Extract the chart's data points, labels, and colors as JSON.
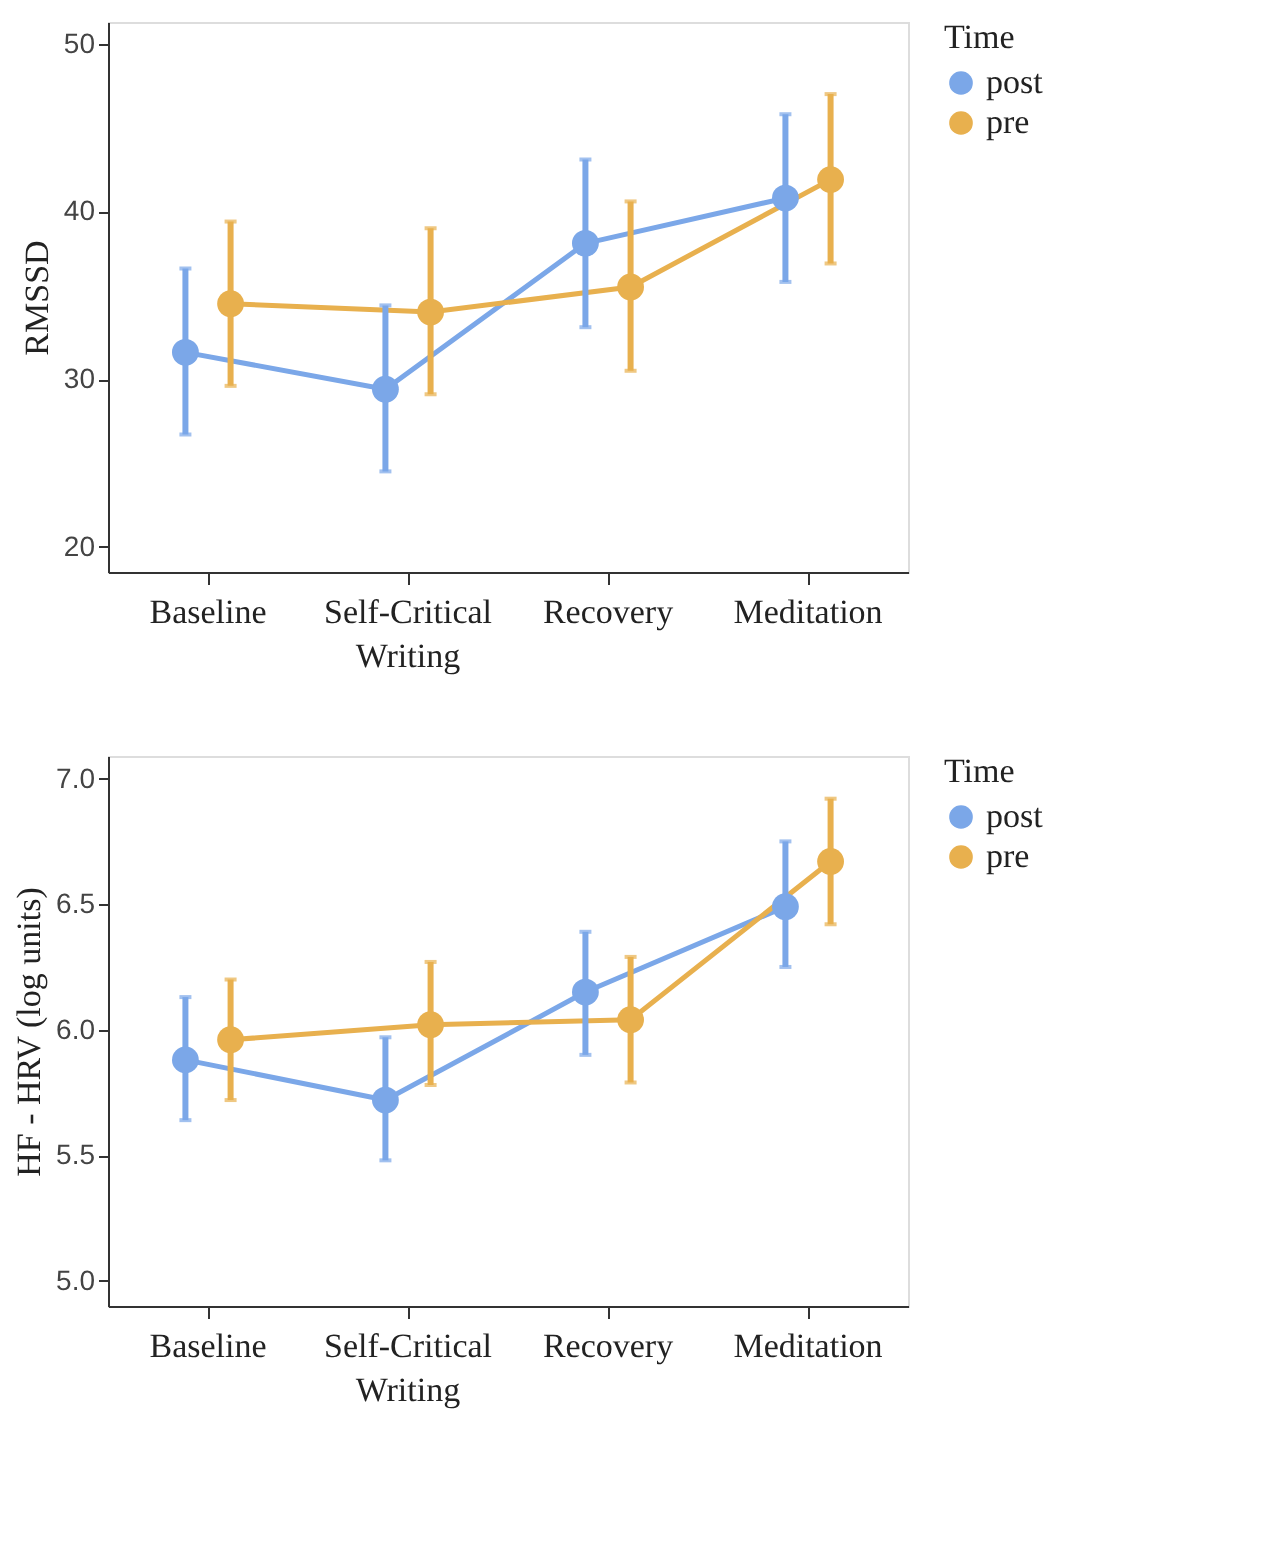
{
  "chart_data": [
    {
      "type": "line",
      "categories": [
        "Baseline",
        "Self-Critical Writing",
        "Recovery",
        "Meditation"
      ],
      "ylabel": "RMSSD",
      "legend_title": "Time",
      "legend": "right",
      "grid": false,
      "marker": "circle",
      "line_style": "solid",
      "ylim": [
        18.5,
        51.3
      ],
      "yticks": [
        20,
        30,
        40,
        50
      ],
      "series": [
        {
          "name": "post",
          "color": "#7ba7e8",
          "values": [
            31.6,
            29.4,
            38.1,
            40.8
          ],
          "errors": [
            [
              26.7,
              36.6
            ],
            [
              24.5,
              34.4
            ],
            [
              33.1,
              43.1
            ],
            [
              35.8,
              45.8
            ]
          ]
        },
        {
          "name": "pre",
          "color": "#e8b04e",
          "values": [
            34.5,
            34.0,
            35.5,
            41.9
          ],
          "errors": [
            [
              29.6,
              39.4
            ],
            [
              29.1,
              39.0
            ],
            [
              30.5,
              40.6
            ],
            [
              36.9,
              47.0
            ]
          ]
        }
      ]
    },
    {
      "type": "line",
      "categories": [
        "Baseline",
        "Self-Critical Writing",
        "Recovery",
        "Meditation"
      ],
      "ylabel": "HF - HRV (log units)",
      "legend_title": "Time",
      "legend": "right",
      "grid": false,
      "marker": "circle",
      "line_style": "solid",
      "ylim": [
        4.9,
        7.09
      ],
      "yticks": [
        {
          "value": 5,
          "label": "5.0"
        },
        {
          "value": 5.5,
          "label": "5.5"
        },
        {
          "value": 6,
          "label": "6.0"
        },
        {
          "value": 6.5,
          "label": "6.5"
        },
        {
          "value": 7,
          "label": "7.0"
        }
      ],
      "series": [
        {
          "name": "post",
          "color": "#7ba7e8",
          "values": [
            5.88,
            5.72,
            6.15,
            6.49
          ],
          "errors": [
            [
              5.64,
              6.13
            ],
            [
              5.48,
              5.97
            ],
            [
              5.9,
              6.39
            ],
            [
              6.25,
              6.75
            ]
          ]
        },
        {
          "name": "pre",
          "color": "#e8b04e",
          "values": [
            5.96,
            6.02,
            6.04,
            6.67
          ],
          "errors": [
            [
              5.72,
              6.2
            ],
            [
              5.78,
              6.27
            ],
            [
              5.79,
              6.29
            ],
            [
              6.42,
              6.92
            ]
          ]
        }
      ]
    }
  ]
}
